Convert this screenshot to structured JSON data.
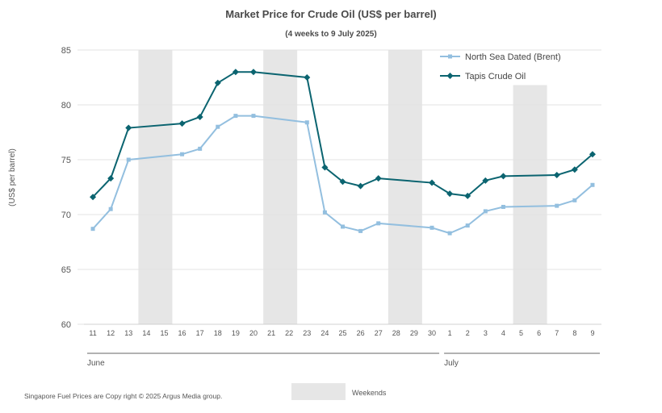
{
  "chart_data": {
    "type": "line",
    "title": "Market Price for Crude  Oil (US$  per barrel)",
    "subtitle": "(4 weeks to 9 July 2025)",
    "ylabel": "(US$ per barrel)",
    "ylim": [
      60,
      85
    ],
    "yticks": [
      60,
      65,
      70,
      75,
      80,
      85
    ],
    "x": [
      "11",
      "12",
      "13",
      "14",
      "15",
      "16",
      "17",
      "18",
      "19",
      "20",
      "21",
      "22",
      "23",
      "24",
      "25",
      "26",
      "27",
      "28",
      "29",
      "30",
      "1",
      "2",
      "3",
      "4",
      "5",
      "6",
      "7",
      "8",
      "9"
    ],
    "months": [
      {
        "label": "June",
        "from": "11",
        "to": "30"
      },
      {
        "label": "July",
        "from": "1",
        "to": "9"
      }
    ],
    "weekends": [
      [
        "14",
        "15"
      ],
      [
        "21",
        "22"
      ],
      [
        "28",
        "29"
      ],
      [
        "5",
        "6"
      ]
    ],
    "grid": "horizontal",
    "legend_position": "top-right",
    "series": [
      {
        "name": "North Sea Dated (Brent)",
        "color": "#93bfdf",
        "marker": "square",
        "values": [
          68.7,
          70.5,
          75.0,
          null,
          null,
          75.5,
          76.0,
          78.0,
          79.0,
          79.0,
          null,
          null,
          78.4,
          70.2,
          68.9,
          68.5,
          69.2,
          null,
          null,
          68.8,
          68.3,
          69.0,
          70.3,
          70.7,
          null,
          null,
          70.8,
          71.3,
          72.7
        ]
      },
      {
        "name": "Tapis Crude Oil",
        "color": "#0b6470",
        "marker": "diamond",
        "values": [
          71.6,
          73.3,
          77.9,
          null,
          null,
          78.3,
          78.9,
          82.0,
          83.0,
          83.0,
          null,
          null,
          82.5,
          74.3,
          73.0,
          72.6,
          73.3,
          null,
          null,
          72.9,
          71.9,
          71.7,
          73.1,
          73.5,
          null,
          null,
          73.6,
          74.1,
          75.5
        ]
      }
    ],
    "weekends_label": "Weekends",
    "weekend_color": "#e6e6e6"
  },
  "footer": {
    "copyright": "Singapore  Fuel Prices are  Copy right © 2025 Argus Media  group."
  }
}
